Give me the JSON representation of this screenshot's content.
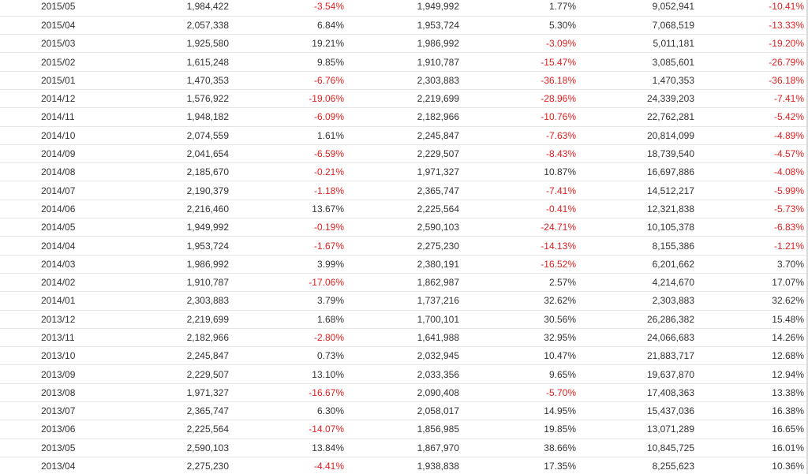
{
  "table": {
    "rows": [
      [
        "2015/05",
        "1,984,422",
        "-3.54%",
        "1,949,992",
        "1.77%",
        "9,052,941",
        "-10.41%"
      ],
      [
        "2015/04",
        "2,057,338",
        "6.84%",
        "1,953,724",
        "5.30%",
        "7,068,519",
        "-13.33%"
      ],
      [
        "2015/03",
        "1,925,580",
        "19.21%",
        "1,986,992",
        "-3.09%",
        "5,011,181",
        "-19.20%"
      ],
      [
        "2015/02",
        "1,615,248",
        "9.85%",
        "1,910,787",
        "-15.47%",
        "3,085,601",
        "-26.79%"
      ],
      [
        "2015/01",
        "1,470,353",
        "-6.76%",
        "2,303,883",
        "-36.18%",
        "1,470,353",
        "-36.18%"
      ],
      [
        "2014/12",
        "1,576,922",
        "-19.06%",
        "2,219,699",
        "-28.96%",
        "24,339,203",
        "-7.41%"
      ],
      [
        "2014/11",
        "1,948,182",
        "-6.09%",
        "2,182,966",
        "-10.76%",
        "22,762,281",
        "-5.42%"
      ],
      [
        "2014/10",
        "2,074,559",
        "1.61%",
        "2,245,847",
        "-7.63%",
        "20,814,099",
        "-4.89%"
      ],
      [
        "2014/09",
        "2,041,654",
        "-6.59%",
        "2,229,507",
        "-8.43%",
        "18,739,540",
        "-4.57%"
      ],
      [
        "2014/08",
        "2,185,670",
        "-0.21%",
        "1,971,327",
        "10.87%",
        "16,697,886",
        "-4.08%"
      ],
      [
        "2014/07",
        "2,190,379",
        "-1.18%",
        "2,365,747",
        "-7.41%",
        "14,512,217",
        "-5.99%"
      ],
      [
        "2014/06",
        "2,216,460",
        "13.67%",
        "2,225,564",
        "-0.41%",
        "12,321,838",
        "-5.73%"
      ],
      [
        "2014/05",
        "1,949,992",
        "-0.19%",
        "2,590,103",
        "-24.71%",
        "10,105,378",
        "-6.83%"
      ],
      [
        "2014/04",
        "1,953,724",
        "-1.67%",
        "2,275,230",
        "-14.13%",
        "8,155,386",
        "-1.21%"
      ],
      [
        "2014/03",
        "1,986,992",
        "3.99%",
        "2,380,191",
        "-16.52%",
        "6,201,662",
        "3.70%"
      ],
      [
        "2014/02",
        "1,910,787",
        "-17.06%",
        "1,862,987",
        "2.57%",
        "4,214,670",
        "17.07%"
      ],
      [
        "2014/01",
        "2,303,883",
        "3.79%",
        "1,737,216",
        "32.62%",
        "2,303,883",
        "32.62%"
      ],
      [
        "2013/12",
        "2,219,699",
        "1.68%",
        "1,700,101",
        "30.56%",
        "26,286,382",
        "15.48%"
      ],
      [
        "2013/11",
        "2,182,966",
        "-2.80%",
        "1,641,988",
        "32.95%",
        "24,066,683",
        "14.26%"
      ],
      [
        "2013/10",
        "2,245,847",
        "0.73%",
        "2,032,945",
        "10.47%",
        "21,883,717",
        "12.68%"
      ],
      [
        "2013/09",
        "2,229,507",
        "13.10%",
        "2,033,356",
        "9.65%",
        "19,637,870",
        "12.94%"
      ],
      [
        "2013/08",
        "1,971,327",
        "-16.67%",
        "2,090,408",
        "-5.70%",
        "17,408,363",
        "13.38%"
      ],
      [
        "2013/07",
        "2,365,747",
        "6.30%",
        "2,058,017",
        "14.95%",
        "15,437,036",
        "16.38%"
      ],
      [
        "2013/06",
        "2,225,564",
        "-14.07%",
        "1,856,985",
        "19.85%",
        "13,071,289",
        "16.65%"
      ],
      [
        "2013/05",
        "2,590,103",
        "13.84%",
        "1,867,970",
        "38.66%",
        "10,845,725",
        "16.01%"
      ],
      [
        "2013/04",
        "2,275,230",
        "-4.41%",
        "1,938,838",
        "17.35%",
        "8,255,623",
        "10.36%"
      ]
    ]
  },
  "colors": {
    "text": "#333333",
    "negative": "#e02020",
    "row_border": "#e6e6e6",
    "background": "#ffffff"
  }
}
